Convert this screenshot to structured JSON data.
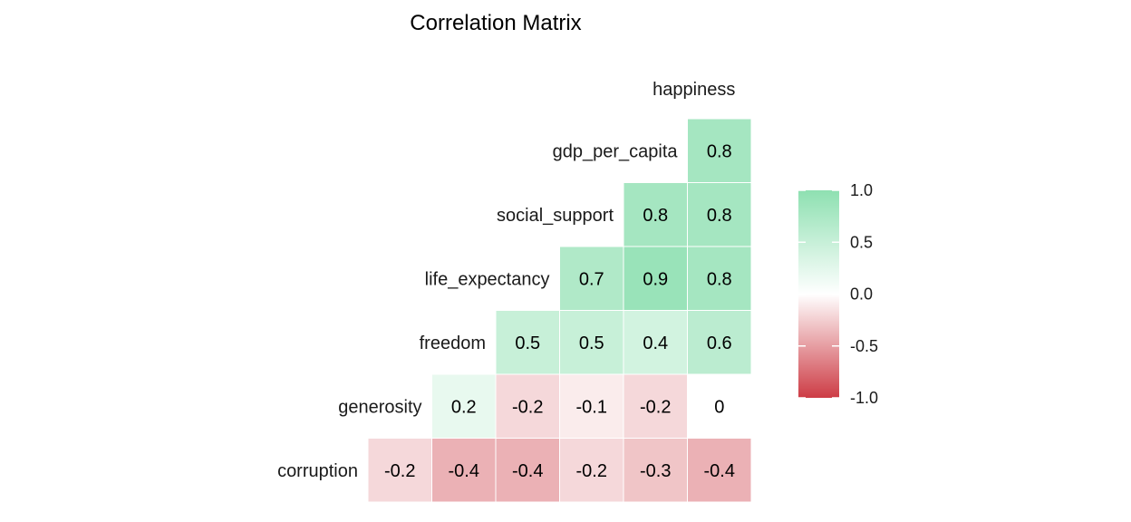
{
  "chart_data": {
    "type": "heatmap",
    "title": "Correlation Matrix",
    "variables": [
      "happiness",
      "gdp_per_capita",
      "social_support",
      "life_expectancy",
      "freedom",
      "generosity",
      "corruption"
    ],
    "lower_triangle": [
      [
        0.8
      ],
      [
        0.8,
        0.8
      ],
      [
        0.8,
        0.9,
        0.7
      ],
      [
        0.6,
        0.4,
        0.5,
        0.5
      ],
      [
        0,
        -0.2,
        -0.1,
        -0.2,
        0.2
      ],
      [
        -0.4,
        -0.3,
        -0.2,
        -0.4,
        -0.4,
        -0.2
      ]
    ],
    "value_labels": [
      [
        "0.8"
      ],
      [
        "0.8",
        "0.8"
      ],
      [
        "0.8",
        "0.9",
        "0.7"
      ],
      [
        "0.6",
        "0.4",
        "0.5",
        "0.5"
      ],
      [
        "0",
        "-0.2",
        "-0.1",
        "-0.2",
        "0.2"
      ],
      [
        "-0.4",
        "-0.3",
        "-0.2",
        "-0.4",
        "-0.4",
        "-0.2"
      ]
    ],
    "colorscale": {
      "low": "#cd3c45",
      "mid": "#ffffff",
      "high": "#8ee0b1"
    },
    "legend": {
      "position": "right",
      "range": [
        -1,
        1
      ],
      "ticks": [
        "1.0",
        "0.5",
        "0.0",
        "-0.5",
        "-1.0"
      ]
    }
  }
}
